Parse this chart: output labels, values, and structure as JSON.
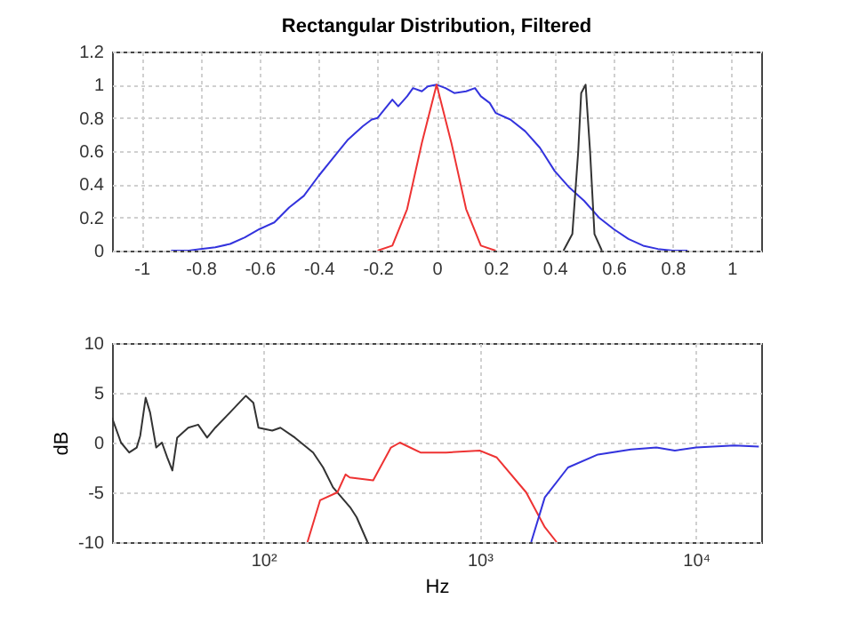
{
  "chart_data": [
    {
      "type": "line",
      "title": "Rectangular Distribution, Filtered",
      "xlim": [
        -1.1,
        1.1
      ],
      "ylim": [
        0,
        1.2
      ],
      "xticks": [
        -1,
        -0.8,
        -0.6,
        -0.4,
        -0.2,
        0,
        0.2,
        0.4,
        0.6,
        0.8,
        1
      ],
      "yticks": [
        0,
        0.2,
        0.4,
        0.6,
        0.8,
        1,
        1.2
      ],
      "grid": true,
      "series": [
        {
          "color": "#3333dd",
          "x": [
            -0.9,
            -0.84,
            -0.8,
            -0.75,
            -0.7,
            -0.65,
            -0.6,
            -0.55,
            -0.5,
            -0.45,
            -0.4,
            -0.35,
            -0.3,
            -0.25,
            -0.22,
            -0.2,
            -0.15,
            -0.13,
            -0.1,
            -0.08,
            -0.05,
            -0.03,
            0,
            0.03,
            0.06,
            0.1,
            0.13,
            0.15,
            0.18,
            0.2,
            0.25,
            0.3,
            0.35,
            0.4,
            0.45,
            0.5,
            0.55,
            0.6,
            0.65,
            0.7,
            0.75,
            0.8,
            0.85
          ],
          "values": [
            0,
            0,
            0.01,
            0.02,
            0.04,
            0.08,
            0.13,
            0.17,
            0.26,
            0.33,
            0.45,
            0.56,
            0.67,
            0.75,
            0.79,
            0.8,
            0.91,
            0.87,
            0.93,
            0.98,
            0.96,
            0.99,
            1,
            0.98,
            0.95,
            0.96,
            0.98,
            0.93,
            0.89,
            0.83,
            0.79,
            0.72,
            0.62,
            0.48,
            0.38,
            0.3,
            0.2,
            0.13,
            0.07,
            0.03,
            0.01,
            0,
            0
          ]
        },
        {
          "color": "#ee3333",
          "x": [
            -0.2,
            -0.15,
            -0.1,
            -0.05,
            0,
            0.05,
            0.1,
            0.15,
            0.2
          ],
          "values": [
            0,
            0.03,
            0.25,
            0.65,
            1,
            0.65,
            0.25,
            0.03,
            0
          ]
        },
        {
          "color": "#333333",
          "x": [
            0.43,
            0.46,
            0.48,
            0.49,
            0.505,
            0.52,
            0.535,
            0.56
          ],
          "values": [
            0,
            0.1,
            0.6,
            0.95,
            1,
            0.6,
            0.1,
            0
          ]
        }
      ]
    },
    {
      "type": "line",
      "xlabel": "Hz",
      "ylabel": "dB",
      "log": "x",
      "xlim": [
        20,
        20000
      ],
      "ylim": [
        -10,
        10
      ],
      "xticks": [
        {
          "value": 100,
          "label": "10²"
        },
        {
          "value": 1000,
          "label": "10³"
        },
        {
          "value": 10000,
          "label": "10⁴"
        }
      ],
      "yticks": [
        -10,
        -5,
        0,
        5,
        10
      ],
      "grid": true,
      "series": [
        {
          "color": "#333333",
          "x": [
            20,
            22,
            24,
            26,
            27,
            28.6,
            30,
            32,
            34,
            36,
            38,
            40,
            45,
            50,
            55,
            60,
            70,
            83,
            90,
            95,
            110,
            120,
            140,
            170,
            189,
            210,
            252,
            270,
            303
          ],
          "values": [
            2.5,
            0,
            -1,
            -0.5,
            0.7,
            4.5,
            3,
            -0.5,
            0,
            -1.5,
            -2.8,
            0.5,
            1.5,
            1.8,
            0.5,
            1.5,
            3,
            4.7,
            4,
            1.5,
            1.2,
            1.5,
            0.5,
            -1,
            -2.5,
            -4.5,
            -6.5,
            -7.5,
            -10
          ]
        },
        {
          "color": "#ee3333",
          "x": [
            160,
            183,
            220,
            240,
            251,
            322,
            389,
            428,
            533,
            700,
            1000,
            1200,
            1640,
            2000,
            2270
          ],
          "values": [
            -10,
            -5.8,
            -5,
            -3.2,
            -3.5,
            -3.8,
            -0.5,
            0,
            -1,
            -1,
            -0.8,
            -1.5,
            -5,
            -8.5,
            -10
          ]
        },
        {
          "color": "#3333dd",
          "x": [
            1730,
            2000,
            2560,
            3520,
            5000,
            6560,
            7980,
            10000,
            15000,
            19500
          ],
          "values": [
            -10,
            -5.5,
            -2.5,
            -1.2,
            -0.7,
            -0.5,
            -0.8,
            -0.5,
            -0.3,
            -0.4
          ]
        }
      ]
    }
  ]
}
